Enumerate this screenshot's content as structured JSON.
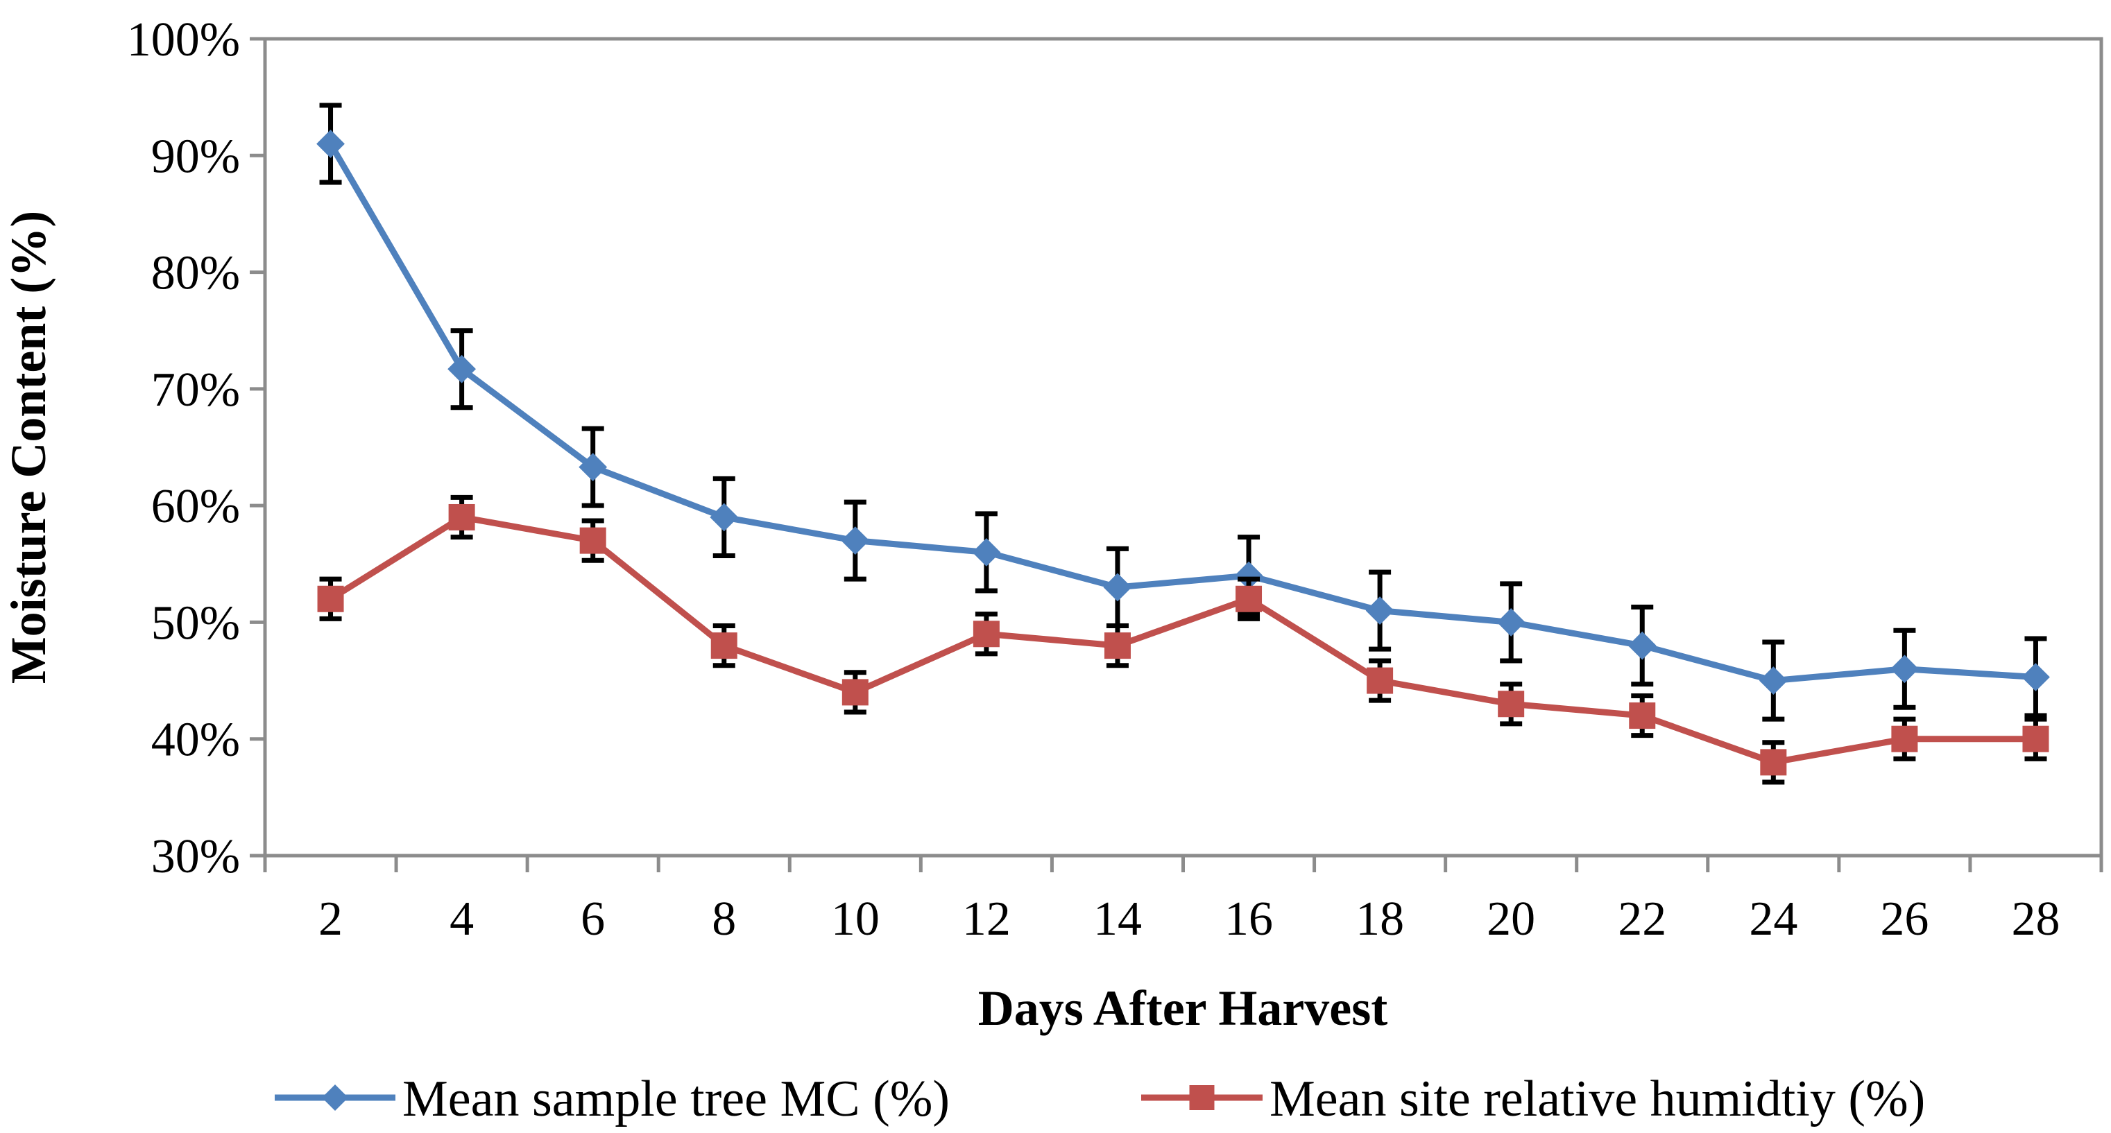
{
  "chart_data": {
    "type": "line",
    "title": "",
    "xlabel": "Days After Harvest",
    "ylabel": "Moisture Content (%)",
    "x": [
      2,
      4,
      6,
      8,
      10,
      12,
      14,
      16,
      18,
      20,
      22,
      24,
      26,
      28
    ],
    "x_tick_labels": [
      "2",
      "4",
      "6",
      "8",
      "10",
      "12",
      "14",
      "16",
      "18",
      "20",
      "22",
      "24",
      "26",
      "28"
    ],
    "ylim": [
      30,
      100
    ],
    "y_ticks": [
      30,
      40,
      50,
      60,
      70,
      80,
      90,
      100
    ],
    "y_tick_labels": [
      "30%",
      "40%",
      "50%",
      "60%",
      "70%",
      "80%",
      "90%",
      "100%"
    ],
    "grid": false,
    "legend_position": "bottom",
    "series": [
      {
        "name": "Mean sample tree MC (%)",
        "color": "#4F81BD",
        "marker": "diamond",
        "values": [
          91,
          71.7,
          63.3,
          59,
          57,
          56,
          53,
          54,
          51,
          50,
          48,
          45,
          46,
          45.3
        ],
        "error": [
          3.3,
          3.3,
          3.3,
          3.3,
          3.3,
          3.3,
          3.3,
          3.3,
          3.3,
          3.3,
          3.3,
          3.3,
          3.3,
          3.3
        ]
      },
      {
        "name": "Mean site relative humidtiy (%)",
        "color": "#C0504D",
        "marker": "square",
        "values": [
          52,
          59,
          57,
          48,
          44,
          49,
          48,
          52,
          45,
          43,
          42,
          38,
          40,
          40
        ],
        "error": [
          1.7,
          1.7,
          1.7,
          1.7,
          1.7,
          1.7,
          1.7,
          1.7,
          1.7,
          1.7,
          1.7,
          1.7,
          1.7,
          1.7
        ]
      }
    ]
  }
}
